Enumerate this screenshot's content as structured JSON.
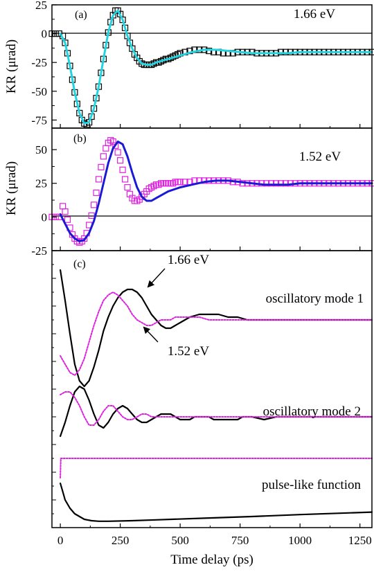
{
  "figure": {
    "xlabel": "Time delay (ps)",
    "x_ticks": [
      "0",
      "250",
      "500",
      "750",
      "1000",
      "1250"
    ]
  },
  "chart_data": [
    {
      "type": "scatter",
      "panel_label": "(a)",
      "annotation": "1.66 eV",
      "ylabel": "KR (μrad)",
      "xlim": [
        -35,
        1300
      ],
      "ylim": [
        -82,
        25
      ],
      "y_ticks": [
        "25",
        "0",
        "-25",
        "-50",
        "-75"
      ],
      "colors": {
        "markers": "#000000",
        "fit": "#22d3e0"
      },
      "series": [
        {
          "style": "open-square-markers",
          "x": [
            -35,
            -20,
            -5,
            10,
            20,
            30,
            40,
            50,
            60,
            70,
            80,
            90,
            100,
            110,
            120,
            130,
            140,
            150,
            160,
            170,
            180,
            190,
            200,
            210,
            220,
            230,
            240,
            250,
            260,
            270,
            280,
            290,
            300,
            310,
            320,
            330,
            340,
            350,
            360,
            370,
            380,
            390,
            400,
            410,
            420,
            430,
            440,
            450,
            460,
            470,
            480,
            490,
            500,
            520,
            540,
            560,
            580,
            600,
            620,
            640,
            660,
            680,
            700,
            720,
            740,
            760,
            780,
            800,
            820,
            840,
            860,
            880,
            900,
            920,
            940,
            960,
            980,
            1000,
            1020,
            1040,
            1060,
            1080,
            1100,
            1120,
            1140,
            1160,
            1180,
            1200,
            1220,
            1240,
            1260,
            1280,
            1300
          ],
          "y": [
            0,
            0,
            0,
            -2,
            -8,
            -17,
            -28,
            -40,
            -51,
            -61,
            -69,
            -75,
            -78,
            -79,
            -77,
            -72,
            -65,
            -56,
            -46,
            -34,
            -22,
            -10,
            1,
            10,
            16,
            20,
            20,
            17,
            12,
            5,
            -2,
            -8,
            -13,
            -18,
            -21,
            -24,
            -26,
            -27,
            -27,
            -27,
            -27,
            -26,
            -25,
            -25,
            -24,
            -23,
            -22,
            -22,
            -21,
            -20,
            -19,
            -18,
            -17,
            -16,
            -15,
            -14,
            -14,
            -14,
            -15,
            -16,
            -16,
            -17,
            -17,
            -17,
            -16,
            -16,
            -16,
            -16,
            -17,
            -17,
            -17,
            -17,
            -17,
            -16,
            -16,
            -16,
            -16,
            -16,
            -16,
            -16,
            -16,
            -16,
            -16,
            -16,
            -16,
            -16,
            -16,
            -16,
            -16,
            -16,
            -16,
            -16,
            -16
          ]
        },
        {
          "style": "solid-line-fit",
          "x": [
            0,
            20,
            40,
            60,
            80,
            100,
            120,
            140,
            160,
            180,
            200,
            220,
            240,
            260,
            280,
            300,
            320,
            340,
            360,
            380,
            400,
            450,
            500,
            550,
            600,
            650,
            700,
            750,
            800,
            850,
            900,
            950,
            1000,
            1050,
            1100,
            1150,
            1200,
            1250,
            1300
          ],
          "y": [
            0,
            -8,
            -28,
            -51,
            -69,
            -78,
            -77,
            -65,
            -46,
            -22,
            1,
            16,
            20,
            12,
            -2,
            -13,
            -21,
            -26,
            -27,
            -27,
            -25,
            -22,
            -19,
            -16,
            -14,
            -14,
            -15,
            -16,
            -17,
            -17,
            -17,
            -17,
            -16,
            -16,
            -16,
            -16,
            -16,
            -16,
            -16
          ]
        }
      ]
    },
    {
      "type": "scatter",
      "panel_label": "(b)",
      "annotation": "1.52 eV",
      "ylabel": "KR (μrad)",
      "xlim": [
        -35,
        1300
      ],
      "ylim": [
        -25,
        66
      ],
      "y_ticks": [
        "50",
        "25",
        "0",
        "-25"
      ],
      "colors": {
        "markers": "#e020e0",
        "fit": "#1a1ad6"
      },
      "series": [
        {
          "style": "open-square-markers",
          "x": [
            -35,
            -20,
            -5,
            10,
            20,
            30,
            40,
            50,
            60,
            70,
            80,
            90,
            100,
            110,
            120,
            130,
            140,
            150,
            160,
            170,
            180,
            190,
            200,
            210,
            220,
            230,
            240,
            250,
            260,
            270,
            280,
            290,
            300,
            310,
            320,
            330,
            340,
            350,
            360,
            370,
            380,
            390,
            400,
            410,
            420,
            430,
            440,
            450,
            460,
            470,
            480,
            490,
            500,
            520,
            540,
            560,
            580,
            600,
            620,
            640,
            660,
            680,
            700,
            720,
            740,
            760,
            780,
            800,
            820,
            840,
            860,
            880,
            900,
            920,
            940,
            960,
            980,
            1000,
            1020,
            1040,
            1060,
            1080,
            1100,
            1120,
            1140,
            1160,
            1180,
            1200,
            1220,
            1240,
            1260,
            1280,
            1300
          ],
          "y": [
            0,
            0,
            0,
            8,
            4,
            -2,
            -8,
            -13,
            -16,
            -18,
            -19,
            -18,
            -16,
            -12,
            -6,
            1,
            9,
            18,
            28,
            37,
            45,
            51,
            55,
            57,
            56,
            53,
            48,
            42,
            35,
            28,
            22,
            17,
            14,
            12,
            12,
            13,
            15,
            17,
            19,
            21,
            22,
            23,
            24,
            24,
            25,
            25,
            25,
            25,
            25,
            25,
            26,
            26,
            26,
            26,
            26,
            27,
            27,
            27,
            27,
            27,
            27,
            27,
            27,
            26,
            26,
            25,
            25,
            25,
            25,
            25,
            25,
            25,
            25,
            25,
            25,
            25,
            25,
            25,
            25,
            25,
            25,
            25,
            25,
            25,
            25,
            25,
            25,
            25,
            25,
            25,
            25,
            25,
            25
          ]
        },
        {
          "style": "solid-line-fit",
          "x": [
            0,
            20,
            40,
            60,
            80,
            100,
            120,
            140,
            160,
            180,
            200,
            220,
            240,
            260,
            280,
            300,
            320,
            340,
            360,
            380,
            400,
            450,
            500,
            550,
            600,
            650,
            700,
            750,
            800,
            850,
            900,
            950,
            1000,
            1050,
            1100,
            1150,
            1200,
            1250,
            1300
          ],
          "y": [
            2,
            -5,
            -12,
            -16,
            -18,
            -17,
            -12,
            -3,
            10,
            25,
            40,
            51,
            56,
            54,
            45,
            33,
            22,
            15,
            12,
            12,
            14,
            19,
            22,
            24,
            26,
            27,
            27,
            26,
            25,
            24,
            24,
            24,
            25,
            25,
            25,
            25,
            25,
            25,
            25
          ]
        }
      ]
    },
    {
      "type": "line",
      "panel_label": "(c)",
      "xlim": [
        -35,
        1300
      ],
      "ylim": [
        0,
        100
      ],
      "colors": {
        "1.66 eV": "#000000",
        "1.52 eV": "#e020e0"
      },
      "annotations": {
        "mode1": "oscillatory mode 1",
        "mode2": "oscillatory mode 2",
        "pulse": "pulse-like function",
        "label_166": "1.66 eV",
        "label_152": "1.52 eV"
      },
      "series": [
        {
          "component": "oscillatory mode 1",
          "energy": "1.66 eV",
          "style": "solid",
          "x": [
            0,
            20,
            40,
            60,
            80,
            100,
            120,
            140,
            160,
            180,
            200,
            220,
            240,
            260,
            280,
            300,
            320,
            340,
            360,
            380,
            400,
            420,
            440,
            460,
            480,
            500,
            540,
            580,
            620,
            660,
            700,
            740,
            780,
            820,
            860,
            900,
            950,
            1000,
            1050,
            1100,
            1150,
            1200,
            1250,
            1300
          ],
          "y": [
            93,
            82,
            70,
            59,
            53,
            51,
            53,
            58,
            64,
            71,
            76,
            80,
            83,
            85,
            86,
            86,
            85,
            83,
            80,
            77,
            75,
            73,
            72,
            72,
            73,
            74,
            76,
            77,
            77,
            77,
            76,
            76,
            75,
            75,
            75,
            75,
            75,
            75,
            75,
            75,
            75,
            75,
            75,
            75
          ]
        },
        {
          "component": "oscillatory mode 1",
          "energy": "1.52 eV",
          "style": "dotted",
          "x": [
            0,
            20,
            40,
            60,
            80,
            100,
            120,
            140,
            160,
            180,
            200,
            220,
            240,
            260,
            280,
            300,
            320,
            340,
            360,
            380,
            400,
            420,
            440,
            460,
            480,
            500,
            540,
            580,
            620,
            660,
            700,
            740,
            780,
            820,
            860,
            900,
            950,
            1000,
            1050,
            1100,
            1150,
            1200,
            1250,
            1300
          ],
          "y": [
            62,
            59,
            56,
            55,
            57,
            61,
            67,
            73,
            78,
            82,
            84,
            85,
            84,
            82,
            80,
            77,
            75,
            74,
            73,
            73,
            74,
            75,
            75,
            75,
            76,
            76,
            76,
            76,
            75,
            75,
            75,
            75,
            75,
            75,
            75,
            75,
            75,
            75,
            75,
            75,
            75,
            75,
            75,
            75
          ]
        },
        {
          "component": "oscillatory mode 2",
          "energy": "1.66 eV",
          "style": "solid",
          "x": [
            0,
            20,
            40,
            60,
            80,
            100,
            120,
            140,
            160,
            180,
            200,
            220,
            240,
            260,
            280,
            300,
            320,
            340,
            360,
            380,
            400,
            420,
            440,
            460,
            480,
            500,
            520,
            540,
            560,
            580,
            600,
            620,
            640,
            660,
            680,
            700,
            720,
            740,
            760,
            780,
            800,
            850,
            900,
            950,
            1000,
            1050,
            1100,
            1150,
            1200,
            1250,
            1300
          ],
          "y": [
            33,
            38,
            44,
            49,
            51,
            50,
            46,
            41,
            37,
            36,
            38,
            41,
            43,
            44,
            43,
            41,
            39,
            38,
            38,
            39,
            40,
            41,
            41,
            41,
            40,
            39,
            39,
            39,
            40,
            40,
            40,
            40,
            39,
            39,
            39,
            39,
            39,
            39,
            40,
            40,
            40,
            39,
            40,
            40,
            40,
            40,
            40,
            40,
            40,
            40,
            40
          ]
        },
        {
          "component": "oscillatory mode 2",
          "energy": "1.52 eV",
          "style": "dotted",
          "x": [
            0,
            20,
            40,
            60,
            80,
            100,
            120,
            140,
            160,
            180,
            200,
            220,
            240,
            260,
            280,
            300,
            320,
            340,
            360,
            380,
            400,
            420,
            440,
            460,
            480,
            500,
            520,
            540,
            560,
            580,
            600,
            620,
            640,
            660,
            680,
            700,
            720,
            740,
            760,
            780,
            800,
            850,
            900,
            950,
            1000,
            1050,
            1100,
            1150,
            1200,
            1250,
            1300
          ],
          "y": [
            48,
            49,
            49,
            47,
            44,
            40,
            37,
            37,
            39,
            42,
            44,
            44,
            42,
            40,
            39,
            39,
            40,
            41,
            41,
            40,
            40,
            40,
            40,
            40,
            40,
            40,
            40,
            40,
            40,
            40,
            40,
            40,
            40,
            40,
            40,
            40,
            40,
            40,
            40,
            40,
            40,
            40,
            40,
            40,
            40,
            40,
            40,
            40,
            40,
            40,
            40
          ]
        },
        {
          "component": "pulse-like function",
          "energy": "1.52 eV",
          "style": "dotted",
          "x": [
            0,
            2,
            10,
            100,
            300,
            600,
            900,
            1300
          ],
          "y": [
            18,
            25,
            25,
            25,
            25,
            25,
            25,
            25
          ]
        },
        {
          "component": "pulse-like function",
          "energy": "1.66 eV",
          "style": "solid",
          "x": [
            0,
            10,
            20,
            40,
            60,
            80,
            100,
            130,
            160,
            200,
            300,
            400,
            600,
            800,
            1000,
            1200,
            1300
          ],
          "y": [
            16,
            13,
            10,
            7,
            5,
            4,
            3,
            2.5,
            2.3,
            2.3,
            2.5,
            2.8,
            3.4,
            4.0,
            4.7,
            5.3,
            5.6
          ]
        }
      ]
    }
  ]
}
